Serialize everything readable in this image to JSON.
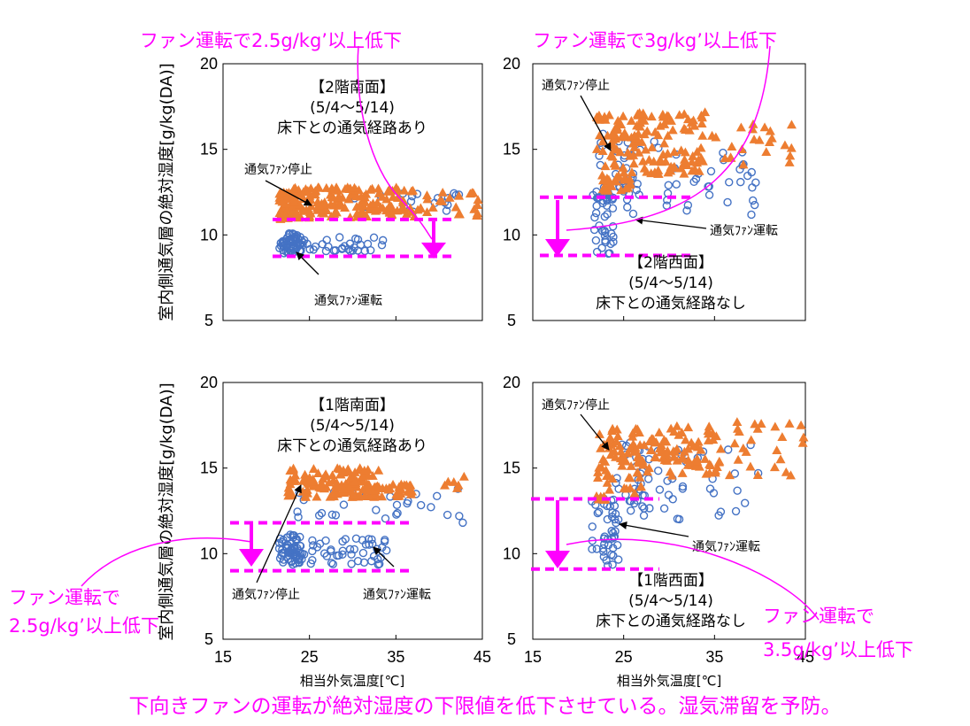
{
  "colors": {
    "fan_stop": "#ed7d31",
    "fan_run": "#4472c4",
    "magenta": "#ff00ff"
  },
  "footer": "下向きファンの運転が絶対湿度の下限値を低下させている。湿気滞留を予防。",
  "chart_data": [
    {
      "id": "p2s",
      "type": "scatter",
      "title_lines": [
        "【2階南面】",
        "(5/4～5/14)",
        "床下との通気経路あり"
      ],
      "xlabel": "",
      "ylabel": "室内側通気層の絶対湿度[g/kg(DA)]",
      "xlim": [
        15,
        45
      ],
      "ylim": [
        5,
        20
      ],
      "xticks": [
        15,
        25,
        35,
        45
      ],
      "yticks": [
        5,
        10,
        15,
        20
      ],
      "legend": "none",
      "annotations": {
        "stop_label": "通気ﾌｧﾝ停止",
        "run_label": "通気ﾌｧﾝ運転"
      },
      "reference_lines": [
        10.9,
        8.75
      ],
      "callout": [
        "ファン運転で2.5g/kg’以上低下"
      ],
      "series": [
        {
          "name": "通気ﾌｧﾝ停止",
          "marker": "triangle",
          "clusters": [
            [
              21.5,
              23.5,
              10.9,
              12.5,
              65
            ],
            [
              23,
              37,
              11.0,
              12.8,
              150
            ],
            [
              37,
              45,
              11.0,
              12.5,
              25
            ]
          ]
        },
        {
          "name": "通気ﾌｧﾝ運転",
          "marker": "circle",
          "clusters": [
            [
              21.5,
              24,
              8.9,
              10.1,
              45
            ],
            [
              22,
              34,
              9.0,
              9.9,
              45
            ],
            [
              30,
              43,
              11.0,
              12.5,
              18
            ]
          ]
        }
      ]
    },
    {
      "id": "p2w",
      "type": "scatter",
      "title_lines": [
        "【2階西面】",
        "(5/4～5/14)",
        "床下との通気経路なし"
      ],
      "xlabel": "",
      "ylabel": "",
      "xlim": [
        15,
        45
      ],
      "ylim": [
        5,
        20
      ],
      "xticks": [
        15,
        25,
        35,
        45
      ],
      "yticks": [
        5,
        10,
        15,
        20
      ],
      "legend": "none",
      "annotations": {
        "stop_label": "通気ﾌｧﾝ停止",
        "run_label": "通気ﾌｧﾝ運転"
      },
      "reference_lines": [
        12.2,
        8.8
      ],
      "callout": [
        "ファン運転で3g/kg’以上低下"
      ],
      "series": [
        {
          "name": "通気ﾌｧﾝ停止",
          "marker": "triangle",
          "clusters": [
            [
              22,
              26,
              12.5,
              17.0,
              70
            ],
            [
              26,
              34,
              13.5,
              17.2,
              95
            ],
            [
              34,
              45,
              14.0,
              16.5,
              25
            ]
          ]
        },
        {
          "name": "通気ﾌｧﾝ運転",
          "marker": "circle",
          "clusters": [
            [
              21.5,
              24,
              8.9,
              12.5,
              40
            ],
            [
              22,
              27,
              12.0,
              16.0,
              30
            ],
            [
              25,
              40,
              11.0,
              15.5,
              40
            ]
          ]
        }
      ]
    },
    {
      "id": "p1s",
      "type": "scatter",
      "title_lines": [
        "【1階南面】",
        "(5/4～5/14)",
        "床下との通気経路あり"
      ],
      "xlabel": "相当外気温度[℃]",
      "ylabel": "室内側通気層の絶対湿度[g/kg(DA)]",
      "xlim": [
        15,
        45
      ],
      "ylim": [
        5,
        20
      ],
      "xticks": [
        15,
        25,
        35,
        45
      ],
      "yticks": [
        5,
        10,
        15,
        20
      ],
      "legend": "none",
      "annotations": {
        "stop_label": "通気ﾌｧﾝ停止",
        "run_label": "通気ﾌｧﾝ運転"
      },
      "reference_lines": [
        11.8,
        9.0
      ],
      "callout": [
        "ファン運転で",
        "2.5g/kg’以上低下"
      ],
      "series": [
        {
          "name": "通気ﾌｧﾝ停止",
          "marker": "triangle",
          "clusters": [
            [
              22.5,
              33,
              13.3,
              15.0,
              130
            ],
            [
              33,
              37,
              13.3,
              14.2,
              25
            ],
            [
              37,
              45,
              13.8,
              14.5,
              6
            ]
          ]
        },
        {
          "name": "通気ﾌｧﾝ運転",
          "marker": "circle",
          "clusters": [
            [
              21.5,
              24,
              9.3,
              11.2,
              60
            ],
            [
              23,
              34,
              9.3,
              11.0,
              50
            ],
            [
              23,
              43,
              11.8,
              13.8,
              30
            ]
          ]
        }
      ]
    },
    {
      "id": "p1w",
      "type": "scatter",
      "title_lines": [
        "【1階西面】",
        "(5/4～5/14)",
        "床下との通気経路なし"
      ],
      "xlabel": "相当外気温度[℃]",
      "ylabel": "",
      "xlim": [
        15,
        45
      ],
      "ylim": [
        5,
        20
      ],
      "xticks": [
        15,
        25,
        35,
        45
      ],
      "yticks": [
        5,
        10,
        15,
        20
      ],
      "legend": "none",
      "annotations": {
        "stop_label": "通気ﾌｧﾝ停止",
        "run_label": "通気ﾌｧﾝ運転"
      },
      "reference_lines": [
        13.2,
        9.1
      ],
      "callout": [
        "ファン運転で",
        "3.5g/kg’以上低下"
      ],
      "series": [
        {
          "name": "通気ﾌｧﾝ停止",
          "marker": "triangle",
          "clusters": [
            [
              22,
              27,
              13.0,
              17.3,
              75
            ],
            [
              27,
              36,
              14.5,
              17.5,
              80
            ],
            [
              36,
              45,
              14.5,
              17.8,
              25
            ]
          ]
        },
        {
          "name": "通気ﾌｧﾝ運転",
          "marker": "circle",
          "clusters": [
            [
              21.5,
              24.5,
              9.3,
              13.5,
              45
            ],
            [
              24,
              28,
              12.5,
              16.5,
              30
            ],
            [
              26,
              40,
              12.0,
              16.5,
              35
            ]
          ]
        }
      ]
    }
  ]
}
